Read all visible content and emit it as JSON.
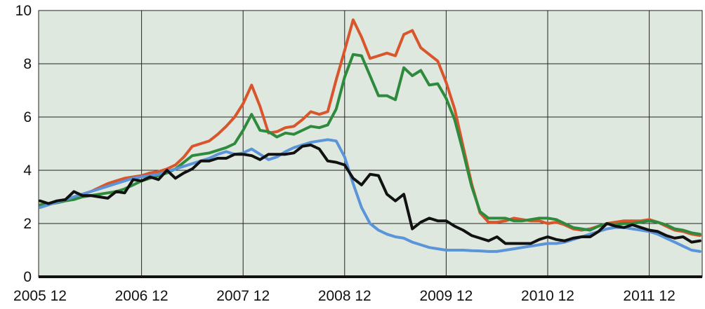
{
  "chart_data": {
    "type": "line",
    "title": "",
    "xlabel": "",
    "ylabel": "",
    "x_tick_labels": [
      "2005 12",
      "2006 12",
      "2007 12",
      "2008 12",
      "2009 12",
      "2010 12",
      "2011 12"
    ],
    "y_tick_labels": [
      "0",
      "2",
      "4",
      "6",
      "8",
      "10"
    ],
    "xlim": [
      0,
      75
    ],
    "ylim": [
      0,
      10
    ],
    "x_axis_note": "monthly observations, index 0 = 2005 12, tick every 12 months",
    "grid": true,
    "legend": "none",
    "plot_background": "#dfe8df",
    "series": [
      {
        "color": "#d9552b",
        "values": [
          2.7,
          2.75,
          2.8,
          2.9,
          3.0,
          3.1,
          3.2,
          3.35,
          3.5,
          3.6,
          3.7,
          3.75,
          3.8,
          3.9,
          3.95,
          4.05,
          4.2,
          4.5,
          4.9,
          5.0,
          5.1,
          5.35,
          5.65,
          6.0,
          6.5,
          7.2,
          6.4,
          5.4,
          5.45,
          5.6,
          5.65,
          5.9,
          6.2,
          6.1,
          6.2,
          7.4,
          8.5,
          9.65,
          9.0,
          8.2,
          8.3,
          8.4,
          8.3,
          9.1,
          9.25,
          8.6,
          8.35,
          8.1,
          7.3,
          6.3,
          4.9,
          3.5,
          2.4,
          2.05,
          2.05,
          2.1,
          2.2,
          2.15,
          2.1,
          2.1,
          2.0,
          2.05,
          1.95,
          1.8,
          1.75,
          1.8,
          1.9,
          2.0,
          2.05,
          2.1,
          2.1,
          2.1,
          2.15,
          2.05,
          1.9,
          1.75,
          1.7,
          1.6,
          1.55
        ]
      },
      {
        "color": "#2e8a3c",
        "values": [
          2.7,
          2.72,
          2.78,
          2.85,
          2.9,
          3.0,
          3.05,
          3.1,
          3.15,
          3.2,
          3.3,
          3.45,
          3.6,
          3.7,
          3.8,
          3.9,
          4.05,
          4.3,
          4.55,
          4.6,
          4.65,
          4.75,
          4.85,
          5.0,
          5.5,
          6.1,
          5.5,
          5.45,
          5.25,
          5.4,
          5.35,
          5.5,
          5.65,
          5.6,
          5.7,
          6.3,
          7.5,
          8.35,
          8.3,
          7.55,
          6.8,
          6.8,
          6.65,
          7.85,
          7.55,
          7.75,
          7.2,
          7.25,
          6.7,
          5.9,
          4.7,
          3.4,
          2.45,
          2.2,
          2.2,
          2.2,
          2.1,
          2.1,
          2.15,
          2.2,
          2.2,
          2.15,
          2.0,
          1.85,
          1.8,
          1.75,
          1.9,
          2.0,
          1.95,
          2.0,
          2.0,
          2.05,
          2.1,
          2.05,
          1.95,
          1.8,
          1.75,
          1.65,
          1.6
        ]
      },
      {
        "color": "#5b94d8",
        "values": [
          2.6,
          2.7,
          2.8,
          2.9,
          3.0,
          3.1,
          3.2,
          3.3,
          3.4,
          3.5,
          3.6,
          3.7,
          3.75,
          3.8,
          3.85,
          3.95,
          4.05,
          4.15,
          4.25,
          4.35,
          4.45,
          4.6,
          4.7,
          4.6,
          4.65,
          4.8,
          4.6,
          4.4,
          4.5,
          4.7,
          4.85,
          4.95,
          5.05,
          5.1,
          5.15,
          5.1,
          4.5,
          3.5,
          2.6,
          2.0,
          1.75,
          1.6,
          1.5,
          1.45,
          1.3,
          1.2,
          1.1,
          1.05,
          1.0,
          1.0,
          1.0,
          0.98,
          0.97,
          0.95,
          0.95,
          1.0,
          1.05,
          1.1,
          1.15,
          1.2,
          1.25,
          1.25,
          1.3,
          1.4,
          1.5,
          1.6,
          1.7,
          1.8,
          1.85,
          1.85,
          1.8,
          1.75,
          1.7,
          1.6,
          1.45,
          1.3,
          1.15,
          1.0,
          0.95
        ]
      },
      {
        "color": "#111111",
        "values": [
          2.85,
          2.75,
          2.85,
          2.9,
          3.2,
          3.05,
          3.05,
          3.0,
          2.95,
          3.2,
          3.15,
          3.65,
          3.6,
          3.75,
          3.65,
          4.0,
          3.7,
          3.9,
          4.05,
          4.35,
          4.35,
          4.45,
          4.45,
          4.6,
          4.6,
          4.55,
          4.4,
          4.6,
          4.6,
          4.6,
          4.65,
          4.9,
          4.95,
          4.8,
          4.35,
          4.3,
          4.2,
          3.7,
          3.45,
          3.85,
          3.8,
          3.1,
          2.85,
          3.1,
          1.8,
          2.05,
          2.2,
          2.1,
          2.1,
          1.9,
          1.75,
          1.55,
          1.45,
          1.35,
          1.5,
          1.25,
          1.25,
          1.25,
          1.25,
          1.4,
          1.5,
          1.4,
          1.35,
          1.45,
          1.5,
          1.5,
          1.7,
          2.0,
          1.9,
          1.85,
          1.95,
          1.85,
          1.75,
          1.7,
          1.55,
          1.45,
          1.5,
          1.3,
          1.35
        ]
      }
    ]
  }
}
